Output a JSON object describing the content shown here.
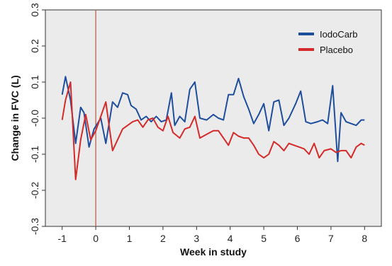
{
  "chart_data": {
    "type": "line",
    "xlabel": "Week in study",
    "ylabel": "Change in FVC (L)",
    "xlim": [
      -1.5,
      8.5
    ],
    "ylim": [
      -0.3,
      0.3
    ],
    "x_ticks": [
      -1,
      0,
      1,
      2,
      3,
      4,
      5,
      6,
      7,
      8
    ],
    "x_tick_labels": [
      "-1",
      "0",
      "1",
      "2",
      "3",
      "4",
      "5",
      "6",
      "7",
      "8"
    ],
    "y_ticks": [
      -0.3,
      -0.2,
      -0.1,
      0.0,
      0.1,
      0.2,
      0.3
    ],
    "y_tick_labels": [
      "-0.3",
      "-0.2",
      "-0.1",
      "-0.0",
      "0.1",
      "0.2",
      "0.3"
    ],
    "grid": false,
    "background_color": "#ebebeb",
    "legend_position": "top-right",
    "reference_line": {
      "x": 0,
      "color": "#b5644a"
    },
    "series": [
      {
        "name": "IodoCarb",
        "color": "#1f4e9c",
        "x": [
          -1.0,
          -0.9,
          -0.75,
          -0.6,
          -0.45,
          -0.35,
          -0.2,
          -0.05,
          0.15,
          0.3,
          0.5,
          0.65,
          0.8,
          0.95,
          1.05,
          1.2,
          1.35,
          1.5,
          1.65,
          1.8,
          1.95,
          2.1,
          2.25,
          2.35,
          2.5,
          2.65,
          2.8,
          2.95,
          3.1,
          3.3,
          3.5,
          3.65,
          3.8,
          3.95,
          4.1,
          4.25,
          4.4,
          4.55,
          4.7,
          4.85,
          5.0,
          5.15,
          5.3,
          5.45,
          5.6,
          5.75,
          5.95,
          6.1,
          6.25,
          6.4,
          6.6,
          6.75,
          6.9,
          7.05,
          7.2,
          7.3,
          7.45,
          7.6,
          7.75,
          7.9,
          8.0
        ],
        "y": [
          0.065,
          0.115,
          0.05,
          -0.07,
          0.03,
          0.015,
          -0.08,
          -0.03,
          0.0,
          -0.07,
          0.045,
          0.03,
          0.07,
          0.065,
          0.035,
          0.025,
          -0.005,
          0.005,
          -0.01,
          0.005,
          -0.01,
          -0.005,
          0.07,
          -0.02,
          0.005,
          -0.01,
          0.08,
          0.1,
          0.0,
          -0.005,
          0.01,
          0.0,
          -0.005,
          0.065,
          0.065,
          0.11,
          0.06,
          0.025,
          -0.015,
          0.01,
          0.04,
          -0.035,
          0.045,
          0.05,
          -0.02,
          0.0,
          0.04,
          0.075,
          -0.01,
          -0.015,
          -0.01,
          -0.005,
          -0.015,
          0.09,
          -0.12,
          0.015,
          -0.01,
          -0.015,
          -0.02,
          -0.005,
          -0.005
        ]
      },
      {
        "name": "Placebo",
        "color": "#d42a2a",
        "x": [
          -1.0,
          -0.9,
          -0.75,
          -0.6,
          -0.45,
          -0.3,
          -0.15,
          0.0,
          0.15,
          0.3,
          0.5,
          0.65,
          0.8,
          0.95,
          1.1,
          1.25,
          1.4,
          1.55,
          1.7,
          1.85,
          2.0,
          2.15,
          2.3,
          2.5,
          2.65,
          2.8,
          2.95,
          3.1,
          3.3,
          3.5,
          3.65,
          3.8,
          3.95,
          4.1,
          4.25,
          4.4,
          4.55,
          4.7,
          4.85,
          5.0,
          5.15,
          5.3,
          5.45,
          5.6,
          5.75,
          5.9,
          6.05,
          6.2,
          6.35,
          6.5,
          6.65,
          6.8,
          7.0,
          7.15,
          7.3,
          7.45,
          7.6,
          7.75,
          7.9,
          8.0
        ],
        "y": [
          -0.005,
          0.05,
          0.1,
          -0.17,
          -0.06,
          0.01,
          -0.06,
          -0.035,
          0.005,
          0.045,
          -0.09,
          -0.06,
          -0.03,
          -0.02,
          -0.01,
          -0.005,
          -0.025,
          -0.005,
          0.0,
          -0.025,
          -0.035,
          0.005,
          -0.04,
          -0.055,
          -0.03,
          -0.025,
          0.005,
          -0.055,
          -0.045,
          -0.035,
          -0.035,
          -0.055,
          -0.075,
          -0.04,
          -0.05,
          -0.055,
          -0.055,
          -0.075,
          -0.1,
          -0.11,
          -0.1,
          -0.065,
          -0.075,
          -0.09,
          -0.07,
          -0.075,
          -0.08,
          -0.085,
          -0.1,
          -0.07,
          -0.11,
          -0.09,
          -0.085,
          -0.095,
          -0.09,
          -0.09,
          -0.11,
          -0.08,
          -0.07,
          -0.075
        ]
      }
    ]
  }
}
